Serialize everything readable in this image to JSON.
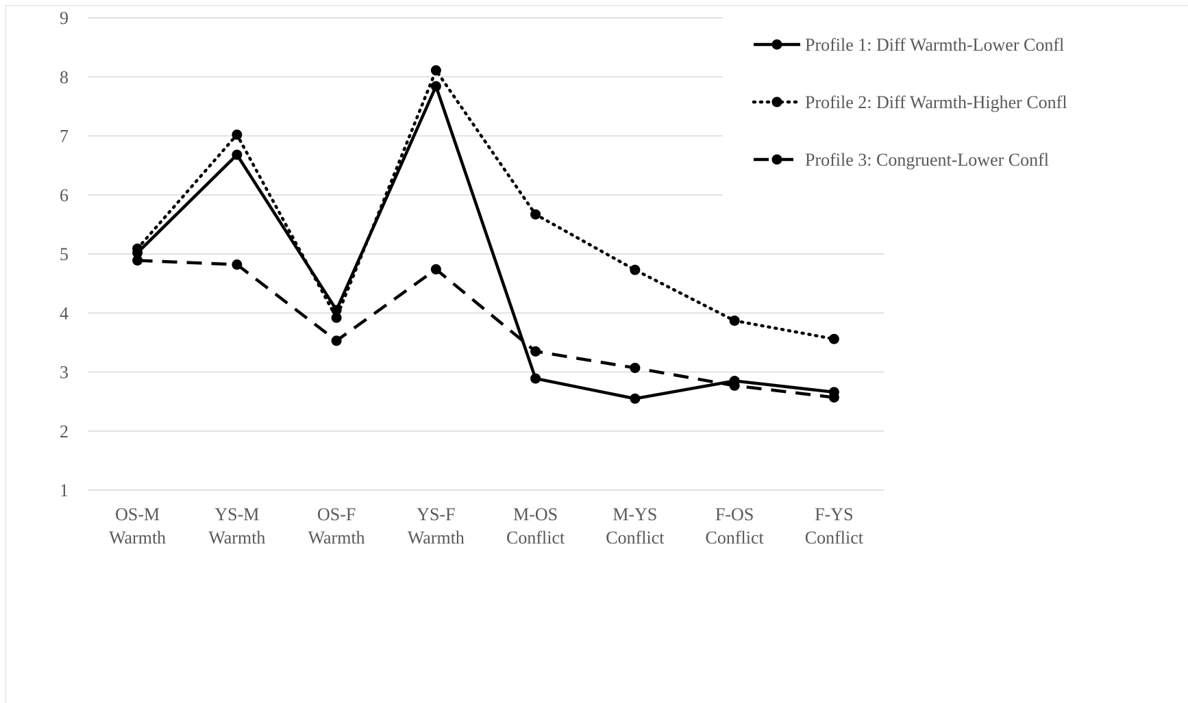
{
  "chart_data": {
    "type": "line",
    "title": "",
    "xlabel": "",
    "ylabel": "",
    "categories": [
      [
        "OS-M",
        "Warmth"
      ],
      [
        "YS-M",
        "Warmth"
      ],
      [
        "OS-F",
        "Warmth"
      ],
      [
        "YS-F",
        "Warmth"
      ],
      [
        "M-OS",
        "Conflict"
      ],
      [
        "M-YS",
        "Conflict"
      ],
      [
        "F-OS",
        "Conflict"
      ],
      [
        "F-YS",
        "Conflict"
      ]
    ],
    "ylim": [
      1,
      9
    ],
    "yticks": [
      1,
      2,
      3,
      4,
      5,
      6,
      7,
      8,
      9
    ],
    "grid": true,
    "legend_position": "top-right",
    "series": [
      {
        "name": "Profile 1: Diff Warmth-Lower Confl",
        "line_style": "solid",
        "color": "#000000",
        "values": [
          5.02,
          6.68,
          4.05,
          7.84,
          2.89,
          2.55,
          2.85,
          2.66
        ]
      },
      {
        "name": "Profile 2: Diff Warmth-Higher Confl",
        "line_style": "dotted",
        "color": "#000000",
        "values": [
          5.09,
          7.02,
          3.92,
          8.11,
          5.67,
          4.73,
          3.87,
          3.56
        ]
      },
      {
        "name": "Profile 3: Congruent-Lower Confl",
        "line_style": "dashed",
        "color": "#000000",
        "values": [
          4.89,
          4.82,
          3.53,
          4.74,
          3.35,
          3.07,
          2.77,
          2.57
        ]
      }
    ]
  }
}
